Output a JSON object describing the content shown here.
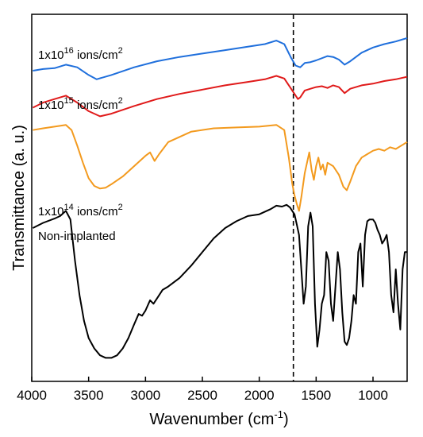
{
  "chart_data": {
    "type": "line",
    "xlabel": "Wavenumber (cm",
    "xlabel_sup": "-1",
    "xlabel_end": ")",
    "ylabel": "Transmittance (a. u.)",
    "xlim": [
      4000,
      700
    ],
    "x_reversed": true,
    "xticks": [
      "4000",
      "3500",
      "3000",
      "2500",
      "2000",
      "1500",
      "1000"
    ],
    "y_ticks_shown": false,
    "grid": false,
    "legend": "none",
    "reference_line": {
      "x": 1700,
      "style": "dashed"
    },
    "series": [
      {
        "label_base": "1x10",
        "label_exp": "16",
        "label_unit": " ions/cm",
        "label_unit_exp": "2",
        "color": "#1f6fdc",
        "points": [
          [
            3990,
            0.955
          ],
          [
            3900,
            0.965
          ],
          [
            3800,
            0.97
          ],
          [
            3700,
            0.99
          ],
          [
            3600,
            0.975
          ],
          [
            3500,
            0.93
          ],
          [
            3430,
            0.905
          ],
          [
            3300,
            0.93
          ],
          [
            3100,
            0.975
          ],
          [
            2900,
            1.01
          ],
          [
            2700,
            1.035
          ],
          [
            2500,
            1.055
          ],
          [
            2300,
            1.075
          ],
          [
            2100,
            1.095
          ],
          [
            1950,
            1.11
          ],
          [
            1850,
            1.13
          ],
          [
            1780,
            1.11
          ],
          [
            1720,
            1.03
          ],
          [
            1680,
            0.985
          ],
          [
            1640,
            0.975
          ],
          [
            1600,
            1.0
          ],
          [
            1550,
            1.005
          ],
          [
            1500,
            1.015
          ],
          [
            1400,
            1.04
          ],
          [
            1350,
            1.035
          ],
          [
            1300,
            1.02
          ],
          [
            1250,
            0.99
          ],
          [
            1200,
            1.01
          ],
          [
            1100,
            1.06
          ],
          [
            1000,
            1.09
          ],
          [
            900,
            1.11
          ],
          [
            800,
            1.125
          ],
          [
            700,
            1.145
          ]
        ]
      },
      {
        "label_base": "1x10",
        "label_exp": "15",
        "label_unit": " ions/cm",
        "label_unit_exp": "2",
        "color": "#e01a1a",
        "points": [
          [
            3990,
            0.74
          ],
          [
            3900,
            0.77
          ],
          [
            3800,
            0.79
          ],
          [
            3700,
            0.81
          ],
          [
            3600,
            0.77
          ],
          [
            3500,
            0.72
          ],
          [
            3400,
            0.69
          ],
          [
            3300,
            0.705
          ],
          [
            3100,
            0.75
          ],
          [
            2900,
            0.79
          ],
          [
            2700,
            0.82
          ],
          [
            2500,
            0.845
          ],
          [
            2300,
            0.87
          ],
          [
            2100,
            0.89
          ],
          [
            1950,
            0.905
          ],
          [
            1850,
            0.925
          ],
          [
            1780,
            0.91
          ],
          [
            1720,
            0.85
          ],
          [
            1690,
            0.82
          ],
          [
            1660,
            0.79
          ],
          [
            1640,
            0.8
          ],
          [
            1600,
            0.84
          ],
          [
            1550,
            0.85
          ],
          [
            1500,
            0.86
          ],
          [
            1450,
            0.865
          ],
          [
            1400,
            0.855
          ],
          [
            1350,
            0.87
          ],
          [
            1300,
            0.86
          ],
          [
            1250,
            0.825
          ],
          [
            1200,
            0.85
          ],
          [
            1100,
            0.87
          ],
          [
            1000,
            0.88
          ],
          [
            900,
            0.895
          ],
          [
            800,
            0.905
          ],
          [
            700,
            0.92
          ]
        ]
      },
      {
        "label_base": "1x10",
        "label_exp": "14",
        "label_unit": " ions/cm",
        "label_unit_exp": "2",
        "color": "#f39a1e",
        "points": [
          [
            3990,
            0.61
          ],
          [
            3900,
            0.62
          ],
          [
            3800,
            0.63
          ],
          [
            3700,
            0.64
          ],
          [
            3650,
            0.61
          ],
          [
            3600,
            0.52
          ],
          [
            3550,
            0.42
          ],
          [
            3500,
            0.33
          ],
          [
            3450,
            0.285
          ],
          [
            3400,
            0.27
          ],
          [
            3350,
            0.275
          ],
          [
            3300,
            0.295
          ],
          [
            3200,
            0.34
          ],
          [
            3100,
            0.4
          ],
          [
            3000,
            0.46
          ],
          [
            2960,
            0.48
          ],
          [
            2920,
            0.43
          ],
          [
            2880,
            0.47
          ],
          [
            2800,
            0.54
          ],
          [
            2600,
            0.6
          ],
          [
            2400,
            0.62
          ],
          [
            2200,
            0.625
          ],
          [
            2000,
            0.63
          ],
          [
            1850,
            0.64
          ],
          [
            1780,
            0.61
          ],
          [
            1740,
            0.45
          ],
          [
            1710,
            0.3
          ],
          [
            1690,
            0.23
          ],
          [
            1670,
            0.18
          ],
          [
            1650,
            0.14
          ],
          [
            1630,
            0.22
          ],
          [
            1600,
            0.36
          ],
          [
            1560,
            0.48
          ],
          [
            1540,
            0.38
          ],
          [
            1520,
            0.32
          ],
          [
            1500,
            0.4
          ],
          [
            1480,
            0.45
          ],
          [
            1460,
            0.38
          ],
          [
            1440,
            0.41
          ],
          [
            1420,
            0.35
          ],
          [
            1400,
            0.42
          ],
          [
            1350,
            0.4
          ],
          [
            1300,
            0.35
          ],
          [
            1260,
            0.28
          ],
          [
            1230,
            0.26
          ],
          [
            1200,
            0.31
          ],
          [
            1150,
            0.4
          ],
          [
            1100,
            0.45
          ],
          [
            1050,
            0.47
          ],
          [
            1000,
            0.49
          ],
          [
            950,
            0.5
          ],
          [
            900,
            0.49
          ],
          [
            850,
            0.51
          ],
          [
            800,
            0.5
          ],
          [
            750,
            0.52
          ],
          [
            700,
            0.54
          ]
        ]
      },
      {
        "label": "Non-implanted",
        "color": "#000000",
        "points": [
          [
            3990,
            0.04
          ],
          [
            3900,
            0.07
          ],
          [
            3800,
            0.095
          ],
          [
            3750,
            0.11
          ],
          [
            3700,
            0.14
          ],
          [
            3660,
            0.09
          ],
          [
            3620,
            -0.15
          ],
          [
            3580,
            -0.35
          ],
          [
            3540,
            -0.5
          ],
          [
            3500,
            -0.6
          ],
          [
            3450,
            -0.66
          ],
          [
            3400,
            -0.7
          ],
          [
            3350,
            -0.715
          ],
          [
            3300,
            -0.715
          ],
          [
            3250,
            -0.7
          ],
          [
            3200,
            -0.66
          ],
          [
            3150,
            -0.6
          ],
          [
            3100,
            -0.52
          ],
          [
            3060,
            -0.46
          ],
          [
            3030,
            -0.47
          ],
          [
            3000,
            -0.44
          ],
          [
            2960,
            -0.38
          ],
          [
            2930,
            -0.4
          ],
          [
            2900,
            -0.37
          ],
          [
            2850,
            -0.32
          ],
          [
            2800,
            -0.3
          ],
          [
            2700,
            -0.25
          ],
          [
            2600,
            -0.18
          ],
          [
            2500,
            -0.1
          ],
          [
            2400,
            -0.02
          ],
          [
            2300,
            0.04
          ],
          [
            2200,
            0.08
          ],
          [
            2100,
            0.11
          ],
          [
            2000,
            0.12
          ],
          [
            1900,
            0.15
          ],
          [
            1850,
            0.17
          ],
          [
            1800,
            0.165
          ],
          [
            1760,
            0.175
          ],
          [
            1730,
            0.16
          ],
          [
            1710,
            0.14
          ],
          [
            1690,
            0.12
          ],
          [
            1670,
            0.06
          ],
          [
            1650,
            0.0
          ],
          [
            1630,
            -0.2
          ],
          [
            1610,
            -0.4
          ],
          [
            1590,
            -0.3
          ],
          [
            1570,
            0.05
          ],
          [
            1550,
            0.13
          ],
          [
            1530,
            0.05
          ],
          [
            1510,
            -0.4
          ],
          [
            1490,
            -0.65
          ],
          [
            1470,
            -0.55
          ],
          [
            1450,
            -0.4
          ],
          [
            1430,
            -0.35
          ],
          [
            1410,
            -0.1
          ],
          [
            1390,
            -0.15
          ],
          [
            1370,
            -0.4
          ],
          [
            1350,
            -0.5
          ],
          [
            1330,
            -0.3
          ],
          [
            1310,
            -0.1
          ],
          [
            1290,
            -0.2
          ],
          [
            1270,
            -0.45
          ],
          [
            1250,
            -0.62
          ],
          [
            1230,
            -0.64
          ],
          [
            1210,
            -0.6
          ],
          [
            1190,
            -0.5
          ],
          [
            1170,
            -0.35
          ],
          [
            1150,
            -0.4
          ],
          [
            1130,
            -0.1
          ],
          [
            1110,
            -0.05
          ],
          [
            1090,
            -0.3
          ],
          [
            1070,
            0.0
          ],
          [
            1050,
            0.08
          ],
          [
            1030,
            0.09
          ],
          [
            1000,
            0.09
          ],
          [
            980,
            0.07
          ],
          [
            960,
            0.03
          ],
          [
            940,
            0.0
          ],
          [
            920,
            -0.05
          ],
          [
            900,
            -0.03
          ],
          [
            880,
            0.0
          ],
          [
            860,
            -0.1
          ],
          [
            840,
            -0.35
          ],
          [
            820,
            -0.45
          ],
          [
            800,
            -0.2
          ],
          [
            780,
            -0.4
          ],
          [
            760,
            -0.55
          ],
          [
            740,
            -0.2
          ],
          [
            720,
            -0.1
          ],
          [
            700,
            -0.1
          ]
        ]
      }
    ]
  }
}
